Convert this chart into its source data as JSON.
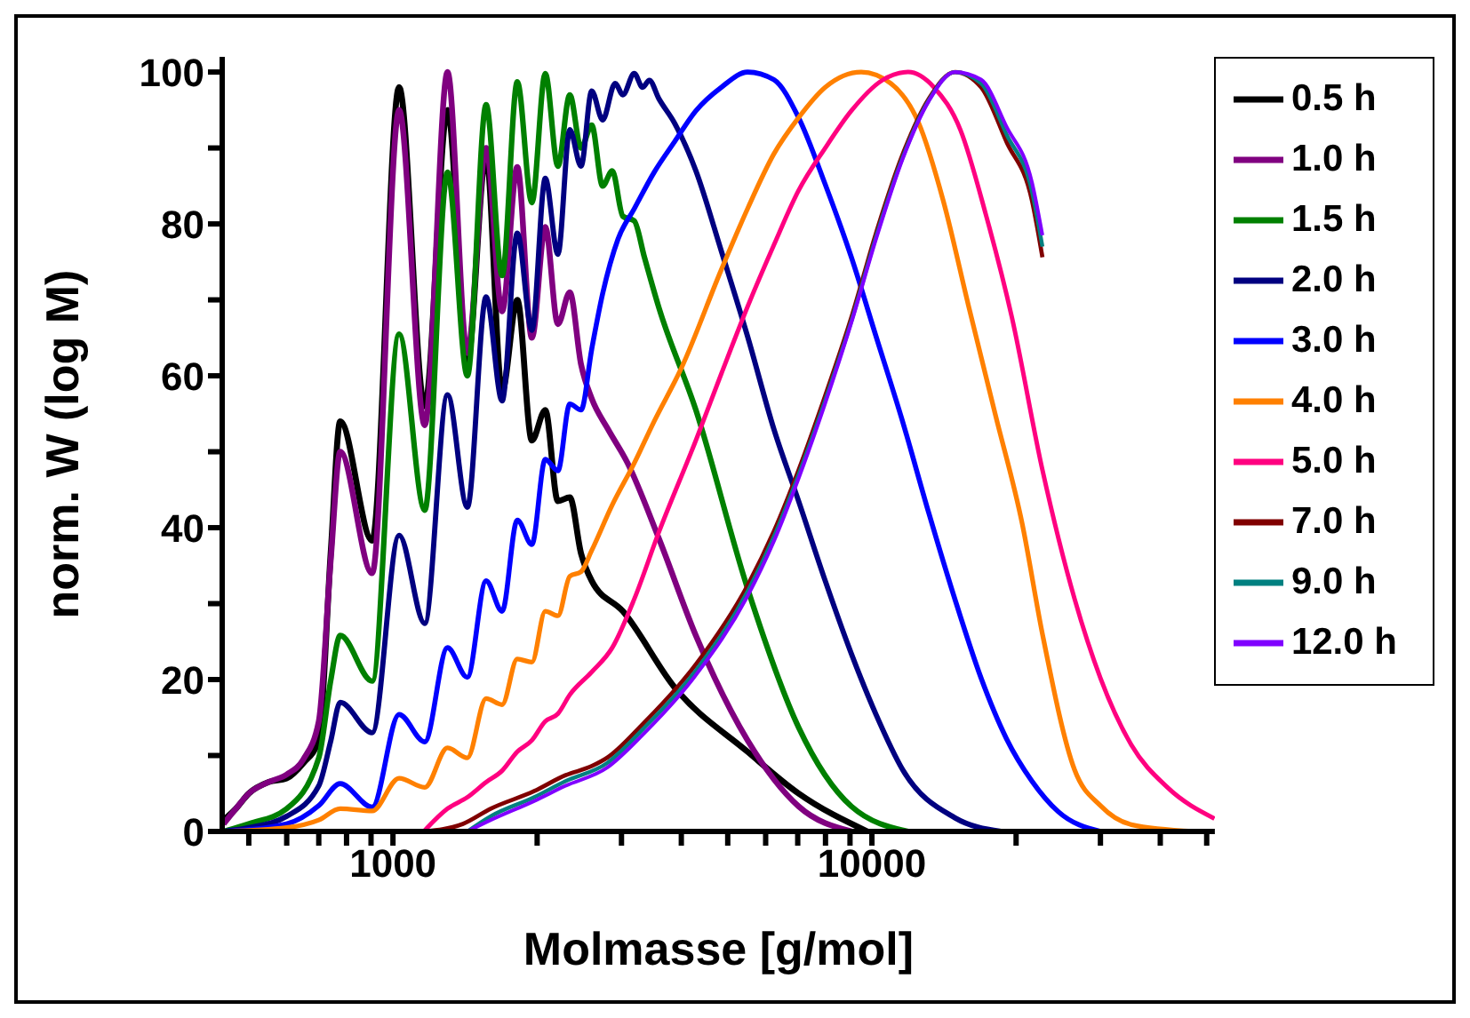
{
  "chart_data": {
    "type": "line",
    "xlabel": "Molmasse [g/mol]",
    "ylabel": "norm. W (log M)",
    "log": "x",
    "legend": "top right",
    "xlim": [
      440,
      52000
    ],
    "ylim": [
      0,
      102
    ],
    "xticks": [
      {
        "value": 500,
        "label": null
      },
      {
        "value": 600,
        "label": null
      },
      {
        "value": 700,
        "label": null
      },
      {
        "value": 800,
        "label": null
      },
      {
        "value": 900,
        "label": null
      },
      1000,
      {
        "value": 2000,
        "label": null
      },
      {
        "value": 3000,
        "label": null
      },
      {
        "value": 4000,
        "label": null
      },
      {
        "value": 5000,
        "label": null
      },
      {
        "value": 6000,
        "label": null
      },
      {
        "value": 7000,
        "label": null
      },
      {
        "value": 8000,
        "label": null
      },
      {
        "value": 9000,
        "label": null
      },
      10000,
      {
        "value": 20000,
        "label": null
      },
      {
        "value": 30000,
        "label": null
      },
      {
        "value": 40000,
        "label": null
      },
      {
        "value": 50000,
        "label": null
      }
    ],
    "yticks": [
      0,
      {
        "value": 10,
        "label": null
      },
      20,
      {
        "value": 30,
        "label": null
      },
      40,
      {
        "value": 50,
        "label": null
      },
      60,
      {
        "value": 70,
        "label": null
      },
      80,
      {
        "value": 90,
        "label": null
      },
      100
    ],
    "series": [
      {
        "name": "0.5 h",
        "color": "#000000",
        "x": [
          443,
          470,
          500,
          550,
          600,
          650,
          700,
          742,
          776,
          905,
          1030,
          1165,
          1300,
          1430,
          1565,
          1690,
          1818,
          1950,
          2080,
          2210,
          2340,
          2470,
          2600,
          3020,
          3870,
          5500,
          7030,
          9780
        ],
        "values": [
          1.5,
          3,
          5,
          6.5,
          7,
          9,
          12,
          37,
          54,
          38.3,
          98,
          56,
          95,
          62,
          89,
          58,
          70,
          51.5,
          55.5,
          43.5,
          44,
          36.6,
          33,
          29,
          19,
          10.5,
          5,
          0
        ]
      },
      {
        "name": "1.0 h",
        "color": "#800080",
        "x": [
          443,
          470,
          500,
          550,
          600,
          650,
          700,
          742,
          776,
          905,
          1030,
          1165,
          1300,
          1430,
          1565,
          1690,
          1818,
          1950,
          2080,
          2210,
          2340,
          2470,
          2600,
          2810,
          3090,
          3590,
          4290,
          5500,
          7030,
          9060
        ],
        "values": [
          1,
          3,
          5,
          6.5,
          7.5,
          9.5,
          14.5,
          36,
          50,
          34,
          95,
          53.5,
          100,
          63,
          90,
          68.5,
          87.5,
          65,
          79.6,
          66.8,
          71,
          61.5,
          57,
          53,
          48.5,
          38.6,
          25.8,
          12,
          3.3,
          0
        ]
      },
      {
        "name": "1.5 h",
        "color": "#008000",
        "x": [
          443,
          500,
          600,
          700,
          742,
          776,
          905,
          1030,
          1165,
          1300,
          1430,
          1565,
          1690,
          1818,
          1950,
          2080,
          2210,
          2340,
          2470,
          2600,
          2740,
          2870,
          3020,
          3190,
          3350,
          3590,
          4290,
          5500,
          7030,
          9060,
          11900
        ],
        "values": [
          0,
          1,
          3,
          9.7,
          20,
          25.8,
          19.8,
          65.5,
          42.3,
          86.8,
          60,
          95.7,
          73.2,
          98.7,
          82.8,
          99.8,
          87.6,
          97,
          90,
          93,
          85,
          87,
          81,
          80.4,
          75.6,
          69,
          55.5,
          32,
          13.7,
          3.3,
          0
        ]
      },
      {
        "name": "2.0 h",
        "color": "#000080",
        "x": [
          443,
          500,
          600,
          700,
          742,
          776,
          905,
          1030,
          1165,
          1300,
          1430,
          1565,
          1690,
          1818,
          1950,
          2080,
          2210,
          2340,
          2470,
          2600,
          2740,
          2910,
          3020,
          3190,
          3320,
          3430,
          3590,
          3870,
          4290,
          4850,
          5500,
          6240,
          7030,
          7990,
          9060,
          10200,
          11600,
          14900,
          18600
        ],
        "values": [
          0,
          0.5,
          2,
          6,
          12,
          17,
          13,
          39,
          27.4,
          57.5,
          42.7,
          70.4,
          56.7,
          78.8,
          66,
          86,
          76,
          92.4,
          87.6,
          97.5,
          93.7,
          98.5,
          97,
          99.8,
          98,
          98.9,
          96.5,
          93.3,
          87,
          76.4,
          65.2,
          53,
          43.5,
          33,
          23.4,
          15.4,
          8.1,
          1.8,
          0
        ]
      },
      {
        "name": "3.0 h",
        "color": "#0000ff",
        "x": [
          443,
          600,
          700,
          776,
          905,
          1030,
          1165,
          1300,
          1430,
          1565,
          1690,
          1818,
          1950,
          2080,
          2210,
          2340,
          2470,
          2600,
          2740,
          2950,
          3190,
          3510,
          3870,
          4290,
          4850,
          5500,
          6240,
          7030,
          7990,
          9060,
          10200,
          11600,
          13150,
          14900,
          16900,
          19100,
          21600,
          24500,
          30000
        ],
        "values": [
          0,
          1,
          3.4,
          6.3,
          3.2,
          15.4,
          11.8,
          24.2,
          20.3,
          33,
          29,
          41,
          37.8,
          49,
          47.5,
          56.3,
          55.5,
          63.5,
          70.8,
          78,
          82,
          86.8,
          90.8,
          94.9,
          98,
          100,
          99,
          94,
          85.2,
          75.6,
          65.2,
          53.9,
          41.9,
          30.6,
          20.2,
          12.2,
          6.6,
          2.6,
          0
        ]
      },
      {
        "name": "4.0 h",
        "color": "#ff8000",
        "x": [
          443,
          600,
          700,
          776,
          905,
          1030,
          1165,
          1300,
          1430,
          1565,
          1690,
          1818,
          1950,
          2080,
          2210,
          2340,
          2470,
          2600,
          2870,
          3190,
          3510,
          4000,
          4850,
          5500,
          6240,
          7030,
          7990,
          9500,
          10950,
          12500,
          14100,
          15900,
          18100,
          20600,
          22700,
          26500,
          30000,
          34800,
          46900
        ],
        "values": [
          0,
          0.5,
          1.5,
          3,
          2.7,
          7,
          5.8,
          11,
          9.7,
          17.5,
          16.7,
          22.7,
          22.3,
          29,
          28.4,
          33.6,
          34.2,
          37,
          43,
          48.5,
          54,
          61,
          74,
          82,
          89.2,
          94,
          98,
          100,
          98.5,
          93.4,
          83,
          69.3,
          54.9,
          40.5,
          26,
          8.1,
          3.4,
          0.9,
          0
        ]
      },
      {
        "name": "5.0 h",
        "color": "#ff0080",
        "x": [
          1160,
          1300,
          1430,
          1565,
          1690,
          1818,
          1950,
          2080,
          2210,
          2340,
          2600,
          2870,
          3190,
          3590,
          4290,
          4850,
          5500,
          6240,
          7030,
          7990,
          9060,
          10500,
          11900,
          13470,
          15300,
          17300,
          19600,
          22700,
          26500,
          30000,
          34800,
          41400,
          51900
        ],
        "values": [
          0,
          3,
          4.5,
          6.5,
          8,
          10.5,
          12,
          14.5,
          15.5,
          18,
          21,
          24.2,
          30.6,
          39.4,
          51.5,
          60.3,
          69.1,
          77.2,
          84.4,
          90,
          94.9,
          98.9,
          100,
          98,
          92.4,
          81.2,
          67.7,
          47.6,
          30.6,
          20.2,
          11.4,
          5.8,
          1.7
        ]
      },
      {
        "name": "7.0 h",
        "color": "#800000",
        "x": [
          1160,
          1400,
          1600,
          1970,
          2290,
          2600,
          2800,
          3330,
          4290,
          5500,
          6240,
          7030,
          7990,
          9060,
          10200,
          11600,
          13150,
          14900,
          16900,
          19100,
          21600,
          22700
        ],
        "values": [
          0,
          1,
          3,
          5.3,
          7.4,
          8.6,
          9.7,
          14.2,
          22,
          32.4,
          39.5,
          47.6,
          57.4,
          67.7,
          78.8,
          89.2,
          96.5,
          100,
          98,
          90.8,
          83,
          75.6
        ]
      },
      {
        "name": "9.0 h",
        "color": "#008080",
        "x": [
          1430,
          1600,
          1970,
          2290,
          2800,
          3330,
          4290,
          5500,
          6240,
          7030,
          7990,
          9060,
          10200,
          11600,
          13150,
          14900,
          16900,
          19100,
          21600,
          22700
        ],
        "values": [
          0,
          2,
          4.5,
          6.6,
          9,
          13.5,
          21.2,
          31.6,
          38.8,
          47,
          56.8,
          67.2,
          78.3,
          88.8,
          96.3,
          100,
          98.5,
          91.8,
          84.2,
          77
        ]
      },
      {
        "name": "12.0 h",
        "color": "#8000ff",
        "x": [
          1430,
          1600,
          1970,
          2290,
          2800,
          3330,
          4290,
          5500,
          6240,
          7030,
          7990,
          9060,
          10200,
          11600,
          13150,
          14900,
          16900,
          19100,
          21600,
          22700
        ],
        "values": [
          0,
          1.5,
          4,
          6,
          8.4,
          12.8,
          20.6,
          31,
          38.2,
          46.5,
          56.4,
          67,
          78,
          88.6,
          96.2,
          100,
          99,
          92.8,
          85.4,
          78.5
        ]
      }
    ]
  }
}
